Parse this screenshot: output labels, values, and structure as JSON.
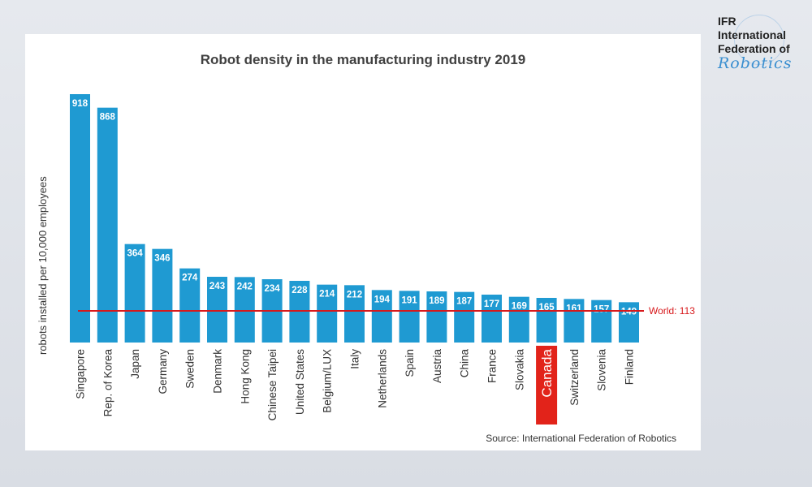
{
  "logo": {
    "line1": "IFR",
    "line2": "International",
    "line3": "Federation of",
    "script": "Robotics"
  },
  "chart_data": {
    "type": "bar",
    "title": "Robot density in the manufacturing industry 2019",
    "ylabel": "robots installed per 10,000 employees",
    "xlabel": "",
    "categories": [
      "Singapore",
      "Rep. of Korea",
      "Japan",
      "Germany",
      "Sweden",
      "Denmark",
      "Hong Kong",
      "Chinese Taipei",
      "United States",
      "Belgium/LUX",
      "Italy",
      "Netherlands",
      "Spain",
      "Austria",
      "China",
      "France",
      "Slovakia",
      "Canada",
      "Switzerland",
      "Slovenia",
      "Finland"
    ],
    "values": [
      918,
      868,
      364,
      346,
      274,
      243,
      242,
      234,
      228,
      214,
      212,
      194,
      191,
      189,
      187,
      177,
      169,
      165,
      161,
      157,
      149
    ],
    "ylim": [
      0,
      950
    ],
    "grid": false,
    "bar_color": "#1f9ad2",
    "highlight_category": "Canada",
    "highlight_color": "#e2231a",
    "reference_line": {
      "label": "World: 113",
      "value": 113,
      "color": "#d7191c"
    },
    "source": "Source: International  Federation of Robotics"
  }
}
